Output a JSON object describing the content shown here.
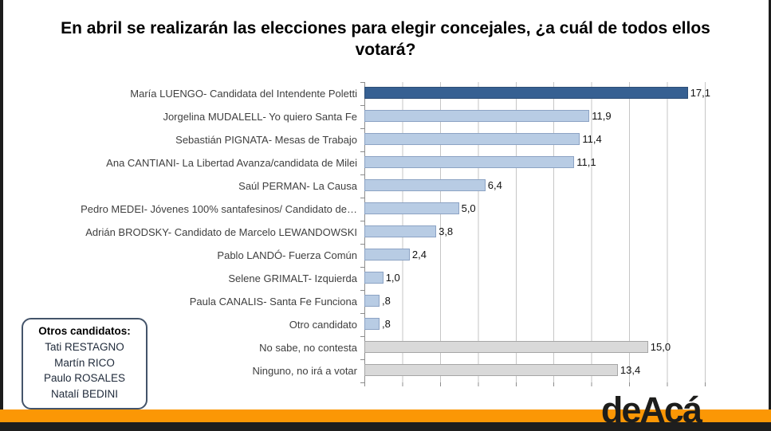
{
  "title": "En abril se realizarán las elecciones para elegir concejales, ¿a cuál de todos ellos votará?",
  "chart_data": {
    "type": "bar",
    "orientation": "horizontal",
    "title": "En abril se realizarán las elecciones para elegir concejales, ¿a cuál de todos ellos votará?",
    "xlabel": "",
    "ylabel": "",
    "xlim": [
      0,
      18
    ],
    "gridline_interval": 2,
    "grid": true,
    "legend": false,
    "categories": [
      "María LUENGO- Candidata del Intendente Poletti",
      "Jorgelina MUDALELL- Yo quiero Santa Fe",
      "Sebastián PIGNATA- Mesas de Trabajo",
      "Ana CANTIANI- La Libertad Avanza/candidata de Milei",
      "Saúl PERMAN- La Causa",
      "Pedro MEDEI- Jóvenes 100% santafesinos/ Candidato de…",
      "Adrián BRODSKY- Candidato de Marcelo LEWANDOWSKI",
      "Pablo LANDÓ- Fuerza Común",
      "Selene GRIMALT- Izquierda",
      "Paula CANALIS- Santa Fe Funciona",
      "Otro candidato",
      "No sabe, no contesta",
      "Ninguno, no irá a votar"
    ],
    "values": [
      17.1,
      11.9,
      11.4,
      11.1,
      6.4,
      5.0,
      3.8,
      2.4,
      1.0,
      0.8,
      0.8,
      15.0,
      13.4
    ],
    "value_labels": [
      "17,1",
      "11,9",
      "11,4",
      "11,1",
      "6,4",
      "5,0",
      "3,8",
      "2,4",
      "1,0",
      ",8",
      ",8",
      "15,0",
      "13,4"
    ],
    "bar_styles": [
      "dark",
      "light",
      "light",
      "light",
      "light",
      "light",
      "light",
      "light",
      "light",
      "light",
      "light",
      "gray",
      "gray"
    ],
    "bar_colors": {
      "dark": "#366092",
      "light": "#b8cce4",
      "gray": "#d9d9d9"
    }
  },
  "others_box": {
    "title": "Otros candidatos:",
    "names": [
      "Tati RESTAGNO",
      "Martín RICO",
      "Paulo ROSALES",
      "Natalí BEDINI"
    ]
  },
  "logo": "deAcá",
  "colors": {
    "accent_orange": "#fb9705",
    "footer_black": "#1e1e1e",
    "bar_dark_blue": "#366092",
    "bar_light_blue": "#b8cce4",
    "bar_gray": "#d9d9d9",
    "gridline": "#c6c6c6"
  }
}
